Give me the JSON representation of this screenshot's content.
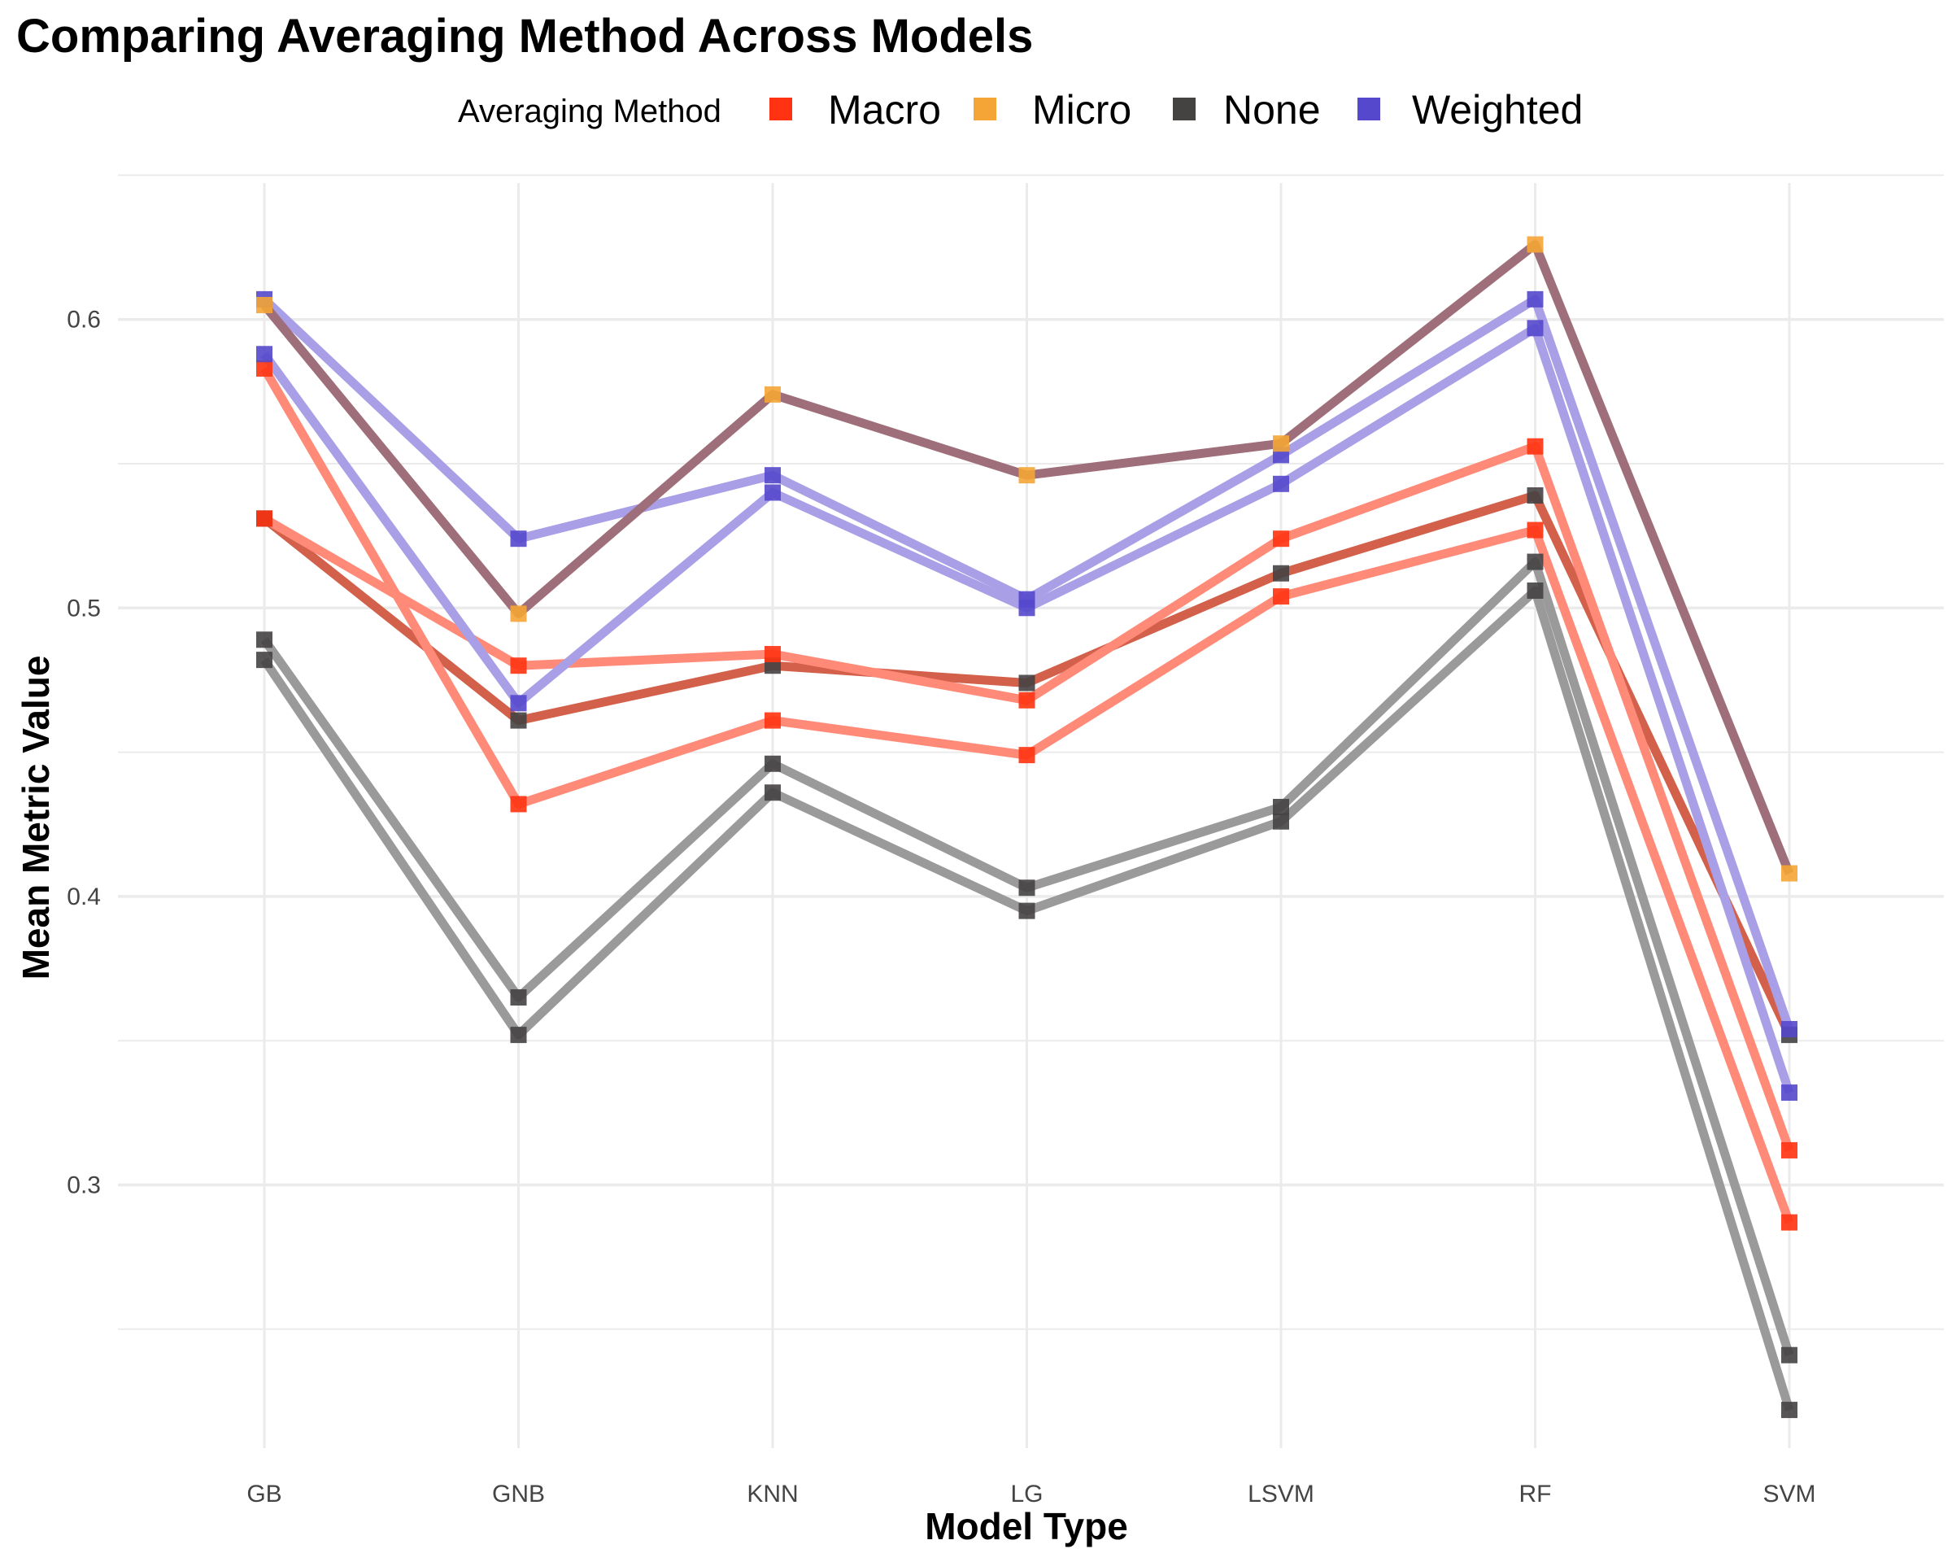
{
  "chart_data": {
    "type": "line",
    "title": "Comparing Averaging Method Across Models",
    "xlabel": "Model Type",
    "ylabel": "Mean Metric Value",
    "categories": [
      "GB",
      "GNB",
      "KNN",
      "LG",
      "LSVM",
      "RF",
      "SVM"
    ],
    "ylim": [
      0.2,
      0.65
    ],
    "yticks": [
      "0.3",
      "0.4",
      "0.5",
      "0.6"
    ],
    "grid": true,
    "legend": {
      "title": "Averaging Method",
      "position": "top",
      "entries": [
        {
          "name": "Macro",
          "color": "#FF3311"
        },
        {
          "name": "Micro",
          "color": "#F4A535"
        },
        {
          "name": "None",
          "color": "#454242"
        },
        {
          "name": "Weighted",
          "color": "#5548CC"
        }
      ]
    },
    "series": [
      {
        "method": "Macro",
        "values": [
          0.583,
          0.432,
          0.461,
          0.449,
          0.504,
          0.527,
          0.287
        ]
      },
      {
        "method": "Macro",
        "values": [
          0.531,
          0.48,
          0.484,
          0.468,
          0.524,
          0.556,
          0.312
        ]
      },
      {
        "method": "Micro",
        "values": [
          0.605,
          0.498,
          0.574,
          0.546,
          0.557,
          0.626,
          0.408
        ]
      },
      {
        "method": "None",
        "values": [
          0.531,
          0.461,
          0.48,
          0.474,
          0.512,
          0.539,
          0.352
        ]
      },
      {
        "method": "None",
        "values": [
          0.489,
          0.365,
          0.446,
          0.403,
          0.431,
          0.516,
          0.241
        ]
      },
      {
        "method": "None",
        "values": [
          0.482,
          0.352,
          0.436,
          0.395,
          0.426,
          0.506,
          0.222
        ]
      },
      {
        "method": "Weighted",
        "values": [
          0.607,
          0.524,
          0.546,
          0.503,
          0.553,
          0.607,
          0.354
        ]
      },
      {
        "method": "Weighted",
        "values": [
          0.588,
          0.467,
          0.54,
          0.5,
          0.543,
          0.597,
          0.332
        ]
      }
    ],
    "colors": {
      "line_macro": "#FF8A78",
      "line_weighted": "#A89FE6",
      "line_none": "#9A9A9A",
      "line_micro": "#9E6E7A",
      "line_none_top": "#D2604A",
      "grid": "#EBEBEB"
    }
  }
}
